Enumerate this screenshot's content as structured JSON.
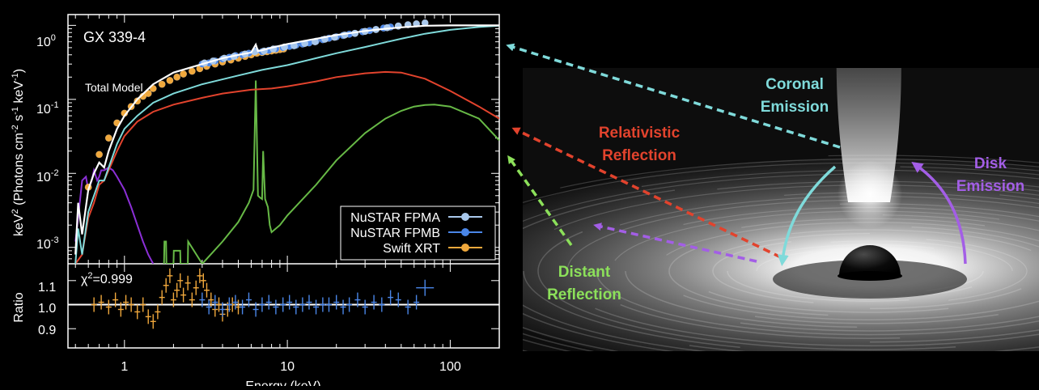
{
  "chart_data": [
    {
      "type": "line",
      "panel": "spectrum",
      "title": "GX 339-4",
      "annotation": "Total Model",
      "xlabel": "",
      "ylabel": "keV² (Photons cm⁻² s⁻¹ keV⁻¹)",
      "ylabel_parts": {
        "a": "keV",
        "b": "2",
        "c": " (Photons cm",
        "d": "-2",
        "e": " s",
        "f": "-1",
        "g": " keV",
        "h": "-1",
        "i": ")"
      },
      "xscale": "log",
      "yscale": "log",
      "xlim": [
        0.45,
        200
      ],
      "ylim": [
        0.0006,
        1.4
      ],
      "yticks": [
        {
          "value": 1,
          "mant": "10",
          "exp": "0"
        },
        {
          "value": 0.1,
          "mant": "10",
          "exp": "-1"
        },
        {
          "value": 0.01,
          "mant": "10",
          "exp": "-2"
        },
        {
          "value": 0.001,
          "mant": "10",
          "exp": "-3"
        }
      ],
      "grid": false,
      "legend": {
        "position": "bottom-right",
        "entries": [
          {
            "name": "NuSTAR FPMA",
            "color": "#a9c8ec"
          },
          {
            "name": "NuSTAR FPMB",
            "color": "#4a86e8"
          },
          {
            "name": "Swift XRT",
            "color": "#f0a83c"
          }
        ]
      },
      "series": [
        {
          "name": "Total Model",
          "color": "#ffffff",
          "x": [
            0.5,
            0.52,
            0.55,
            0.6,
            0.65,
            0.7,
            0.75,
            0.8,
            0.9,
            1.0,
            1.2,
            1.5,
            2,
            3,
            4,
            5,
            6,
            6.4,
            6.6,
            7,
            8,
            10,
            15,
            20,
            30,
            40,
            50,
            70,
            100,
            150,
            200
          ],
          "y": [
            0.0008,
            0.004,
            0.0015,
            0.006,
            0.01,
            0.014,
            0.012,
            0.02,
            0.04,
            0.06,
            0.1,
            0.16,
            0.23,
            0.3,
            0.36,
            0.4,
            0.43,
            0.55,
            0.45,
            0.46,
            0.5,
            0.56,
            0.66,
            0.74,
            0.84,
            0.9,
            0.94,
            0.99,
            1.0,
            1.0,
            1.0
          ]
        },
        {
          "name": "Coronal Emission",
          "color": "#7fdada",
          "x": [
            0.5,
            0.52,
            0.55,
            0.6,
            0.65,
            0.7,
            0.75,
            0.8,
            0.9,
            1.0,
            1.2,
            1.5,
            2,
            3,
            5,
            7,
            10,
            15,
            20,
            30,
            40,
            50,
            70,
            100,
            150,
            200
          ],
          "y": [
            0.0006,
            0.0018,
            0.0008,
            0.003,
            0.005,
            0.008,
            0.008,
            0.012,
            0.025,
            0.04,
            0.06,
            0.09,
            0.12,
            0.16,
            0.21,
            0.25,
            0.29,
            0.36,
            0.42,
            0.51,
            0.59,
            0.66,
            0.77,
            0.87,
            0.95,
            0.99
          ]
        },
        {
          "name": "Relativistic Reflection",
          "color": "#e2432d",
          "x": [
            0.5,
            0.55,
            0.6,
            0.65,
            0.7,
            0.75,
            0.8,
            0.9,
            1.0,
            1.2,
            1.5,
            2,
            3,
            4,
            6,
            8,
            10,
            15,
            20,
            30,
            40,
            50,
            70,
            100,
            150,
            200
          ],
          "y": [
            0.0006,
            0.0008,
            0.0025,
            0.004,
            0.007,
            0.008,
            0.011,
            0.02,
            0.032,
            0.05,
            0.068,
            0.085,
            0.105,
            0.12,
            0.135,
            0.14,
            0.15,
            0.175,
            0.2,
            0.225,
            0.235,
            0.23,
            0.19,
            0.13,
            0.08,
            0.055
          ]
        },
        {
          "name": "Distant Reflection",
          "color": "#67b946",
          "x": [
            1.75,
            1.76,
            1.8,
            1.81,
            2.0,
            2.01,
            2.2,
            2.21,
            2.45,
            2.46,
            3.0,
            3.2,
            4,
            5,
            5.8,
            6.2,
            6.4,
            6.6,
            6.8,
            7.0,
            7.1,
            7.3,
            7.6,
            7.8,
            8,
            9,
            10,
            15,
            20,
            30,
            40,
            50,
            60,
            70,
            80,
            100,
            150,
            200
          ],
          "y": [
            0.0006,
            0.0012,
            0.0012,
            0.0006,
            0.0006,
            0.0009,
            0.0009,
            0.0006,
            0.0006,
            0.0012,
            0.0006,
            0.0007,
            0.0012,
            0.0022,
            0.004,
            0.006,
            0.18,
            0.005,
            0.0047,
            0.0045,
            0.02,
            0.0045,
            0.0035,
            0.002,
            0.0016,
            0.002,
            0.0027,
            0.007,
            0.015,
            0.035,
            0.055,
            0.07,
            0.08,
            0.084,
            0.085,
            0.08,
            0.055,
            0.028
          ]
        },
        {
          "name": "Disk Emission",
          "color": "#8b2fd6",
          "x": [
            0.5,
            0.52,
            0.55,
            0.58,
            0.6,
            0.63,
            0.65,
            0.68,
            0.7,
            0.72,
            0.75,
            0.8,
            0.85,
            0.9,
            1.0,
            1.1,
            1.2,
            1.3,
            1.4,
            1.5
          ],
          "y": [
            0.0012,
            0.0025,
            0.008,
            0.009,
            0.006,
            0.008,
            0.011,
            0.008,
            0.009,
            0.011,
            0.011,
            0.012,
            0.011,
            0.009,
            0.006,
            0.0035,
            0.002,
            0.0012,
            0.0008,
            0.0006
          ]
        },
        {
          "name": "Swift XRT",
          "color": "#f0a83c",
          "marker": "o",
          "x": [
            0.6,
            0.7,
            0.8,
            0.9,
            1.0,
            1.1,
            1.2,
            1.3,
            1.4,
            1.5,
            1.7,
            1.9,
            2.1,
            2.3,
            2.6,
            2.9,
            3.2,
            3.6,
            4.0,
            4.5,
            5.0,
            5.5,
            6.0,
            6.5,
            7.0,
            7.5,
            8.0,
            8.5,
            9.0,
            9.5
          ],
          "y": [
            0.0065,
            0.018,
            0.03,
            0.048,
            0.065,
            0.08,
            0.095,
            0.11,
            0.12,
            0.14,
            0.16,
            0.18,
            0.2,
            0.22,
            0.24,
            0.26,
            0.28,
            0.3,
            0.32,
            0.34,
            0.36,
            0.38,
            0.4,
            0.42,
            0.43,
            0.44,
            0.45,
            0.46,
            0.47,
            0.48
          ]
        },
        {
          "name": "NuSTAR FPMB",
          "color": "#4a86e8",
          "marker": "o",
          "x": [
            3.0,
            3.3,
            3.6,
            4.0,
            4.4,
            4.8,
            5.3,
            5.8,
            6.4,
            7.0,
            7.7,
            8.5,
            9.4,
            10.3,
            11.3,
            12.4,
            13.6,
            15,
            16.5,
            18,
            20,
            22,
            24,
            26,
            29,
            32,
            35,
            39,
            43,
            48
          ],
          "y": [
            0.3,
            0.31,
            0.33,
            0.35,
            0.37,
            0.39,
            0.4,
            0.42,
            0.45,
            0.44,
            0.46,
            0.48,
            0.5,
            0.52,
            0.54,
            0.56,
            0.58,
            0.61,
            0.64,
            0.67,
            0.7,
            0.73,
            0.76,
            0.78,
            0.82,
            0.85,
            0.88,
            0.92,
            0.95,
            0.98
          ]
        },
        {
          "name": "NuSTAR FPMA",
          "color": "#a9c8ec",
          "marker": "o",
          "x": [
            3.1,
            3.5,
            4.1,
            4.7,
            5.5,
            6.3,
            7.2,
            8.2,
            9.6,
            11,
            12.8,
            14.8,
            17,
            19.5,
            22.5,
            26,
            30,
            35,
            41,
            48,
            55,
            62,
            70
          ],
          "y": [
            0.31,
            0.33,
            0.36,
            0.38,
            0.41,
            0.44,
            0.45,
            0.48,
            0.51,
            0.53,
            0.57,
            0.6,
            0.65,
            0.69,
            0.74,
            0.78,
            0.83,
            0.88,
            0.93,
            0.98,
            1.02,
            1.05,
            1.08
          ]
        }
      ]
    },
    {
      "type": "scatter",
      "panel": "ratio",
      "annotation": "χ²=0.999",
      "annotation_parts": {
        "a": "χ",
        "b": "2",
        "c": "=0.999"
      },
      "xlabel": "Energy (keV)",
      "ylabel": "Ratio",
      "xscale": "log",
      "xlim": [
        0.45,
        200
      ],
      "ylim": [
        0.82,
        1.17
      ],
      "yticks": [
        "1.1",
        "1.0",
        "0.9"
      ],
      "xticks": [
        "1",
        "10",
        "100"
      ],
      "reference_line": 1.0,
      "series": [
        {
          "name": "Swift XRT",
          "color": "#f0a83c",
          "x": [
            0.65,
            0.72,
            0.8,
            0.88,
            0.95,
            1.02,
            1.1,
            1.2,
            1.3,
            1.4,
            1.5,
            1.6,
            1.7,
            1.8,
            1.9,
            2.0,
            2.1,
            2.2,
            2.3,
            2.45,
            2.6,
            2.75,
            2.9,
            3.05,
            3.2,
            3.4,
            3.6,
            3.8,
            4.0,
            4.3,
            4.6,
            5.0
          ],
          "y": [
            1.0,
            1.01,
            0.99,
            1.02,
            0.98,
            1.01,
            1.0,
            0.97,
            1.0,
            0.95,
            0.93,
            0.97,
            1.03,
            1.08,
            1.12,
            1.02,
            1.06,
            1.1,
            1.04,
            1.09,
            1.02,
            1.07,
            1.12,
            1.1,
            1.06,
            1.02,
            0.98,
            1.0,
            0.96,
            0.98,
            1.0,
            0.99
          ]
        },
        {
          "name": "NuSTAR FPMB",
          "color": "#4a86e8",
          "x": [
            3.0,
            3.3,
            3.6,
            4.0,
            4.4,
            4.8,
            5.3,
            5.8,
            6.4,
            7.0,
            7.7,
            8.5,
            9.4,
            10.3,
            11.3,
            12.4,
            13.6,
            15,
            16.5,
            18,
            20,
            22,
            24,
            27,
            30,
            34,
            38,
            43,
            48,
            55,
            62,
            70
          ],
          "y": [
            1.02,
            0.99,
            1.01,
            0.98,
            1.0,
            1.01,
            0.99,
            1.02,
            0.98,
            1.0,
            1.01,
            0.99,
            1.0,
            1.01,
            0.99,
            1.0,
            1.01,
            0.99,
            1.0,
            1.0,
            1.01,
            0.99,
            1.0,
            1.02,
            0.99,
            1.01,
            1.0,
            1.03,
            1.02,
            0.99,
            1.01,
            1.07
          ]
        }
      ]
    }
  ],
  "diagram": {
    "labels": {
      "coronal": [
        "Coronal",
        "Emission"
      ],
      "relativistic": [
        "Relativistic",
        "Reflection"
      ],
      "disk": [
        "Disk",
        "Emission"
      ],
      "distant": [
        "Distant",
        "Reflection"
      ]
    },
    "colors": {
      "coronal": "#7fdada",
      "relativistic": "#e2432d",
      "disk": "#a35ee6",
      "distant": "#8ce05a"
    }
  }
}
